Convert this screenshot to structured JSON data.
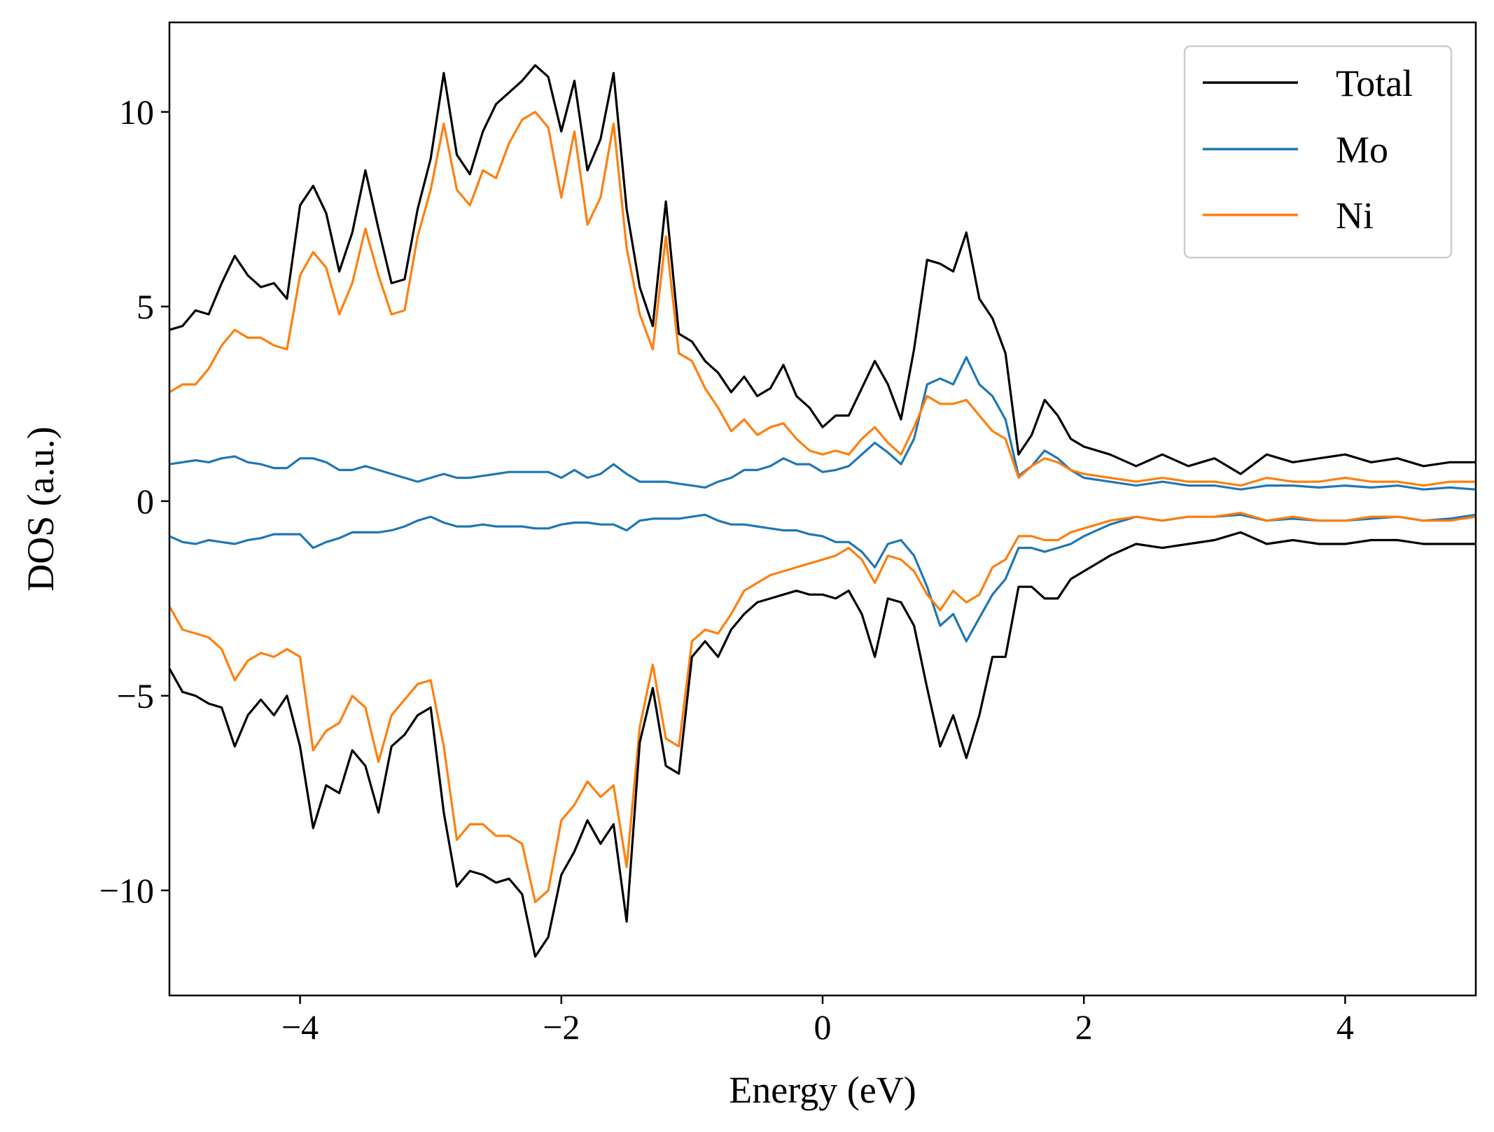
{
  "chart_data": {
    "type": "line",
    "title": "",
    "xlabel": "Energy (eV)",
    "ylabel": "DOS (a.u.)",
    "xlim": [
      -5,
      5
    ],
    "ylim": [
      -12.7,
      12.3
    ],
    "xticks": [
      -4,
      -2,
      0,
      2,
      4
    ],
    "xtick_labels": [
      "−4",
      "−2",
      "0",
      "2",
      "4"
    ],
    "yticks": [
      -10,
      -5,
      0,
      5,
      10
    ],
    "ytick_labels": [
      "−10",
      "−5",
      "0",
      "5",
      "10"
    ],
    "grid": false,
    "legend_position": "top-right",
    "legend": [
      "Total",
      "Mo",
      "Ni"
    ],
    "colors": {
      "Total": "#000000",
      "Mo": "#1f77b4",
      "Ni": "#ff7f0e"
    },
    "x": [
      -5.0,
      -4.9,
      -4.8,
      -4.7,
      -4.6,
      -4.5,
      -4.4,
      -4.3,
      -4.2,
      -4.1,
      -4.0,
      -3.9,
      -3.8,
      -3.7,
      -3.6,
      -3.5,
      -3.4,
      -3.3,
      -3.2,
      -3.1,
      -3.0,
      -2.9,
      -2.8,
      -2.7,
      -2.6,
      -2.5,
      -2.4,
      -2.3,
      -2.2,
      -2.1,
      -2.0,
      -1.9,
      -1.8,
      -1.7,
      -1.6,
      -1.5,
      -1.4,
      -1.3,
      -1.2,
      -1.1,
      -1.0,
      -0.9,
      -0.8,
      -0.7,
      -0.6,
      -0.5,
      -0.4,
      -0.3,
      -0.2,
      -0.1,
      0.0,
      0.1,
      0.2,
      0.3,
      0.4,
      0.5,
      0.6,
      0.7,
      0.8,
      0.9,
      1.0,
      1.1,
      1.2,
      1.3,
      1.4,
      1.5,
      1.6,
      1.7,
      1.8,
      1.9,
      2.0,
      2.2,
      2.4,
      2.6,
      2.8,
      3.0,
      3.2,
      3.4,
      3.6,
      3.8,
      4.0,
      4.2,
      4.4,
      4.6,
      4.8,
      5.0
    ],
    "series": [
      {
        "name": "Total",
        "spin_up": [
          4.4,
          4.5,
          4.9,
          4.8,
          5.6,
          6.3,
          5.8,
          5.5,
          5.6,
          5.2,
          7.6,
          8.1,
          7.4,
          5.9,
          6.9,
          8.5,
          7.0,
          5.6,
          5.7,
          7.5,
          8.8,
          11.0,
          8.9,
          8.4,
          9.5,
          10.2,
          10.5,
          10.8,
          11.2,
          10.9,
          9.5,
          10.8,
          8.5,
          9.3,
          11.0,
          7.5,
          5.5,
          4.5,
          7.7,
          4.3,
          4.1,
          3.6,
          3.3,
          2.8,
          3.2,
          2.7,
          2.9,
          3.5,
          2.7,
          2.4,
          1.9,
          2.2,
          2.2,
          2.9,
          3.6,
          3.0,
          2.1,
          3.9,
          6.2,
          6.1,
          5.9,
          6.9,
          5.2,
          4.7,
          3.8,
          1.2,
          1.7,
          2.6,
          2.2,
          1.6,
          1.4,
          1.2,
          0.9,
          1.2,
          0.9,
          1.1,
          0.7,
          1.2,
          1.0,
          1.1,
          1.2,
          1.0,
          1.1,
          0.9,
          1.0,
          1.0
        ],
        "spin_down": [
          -4.3,
          -4.9,
          -5.0,
          -5.2,
          -5.3,
          -6.3,
          -5.5,
          -5.1,
          -5.5,
          -5.0,
          -6.3,
          -8.4,
          -7.3,
          -7.5,
          -6.4,
          -6.8,
          -8.0,
          -6.3,
          -6.0,
          -5.5,
          -5.3,
          -8.0,
          -9.9,
          -9.5,
          -9.6,
          -9.8,
          -9.7,
          -10.1,
          -11.7,
          -11.2,
          -9.6,
          -9.0,
          -8.2,
          -8.8,
          -8.3,
          -10.8,
          -6.2,
          -4.8,
          -6.8,
          -7.0,
          -4.0,
          -3.6,
          -4.0,
          -3.3,
          -2.9,
          -2.6,
          -2.5,
          -2.4,
          -2.3,
          -2.4,
          -2.4,
          -2.5,
          -2.3,
          -2.9,
          -4.0,
          -2.5,
          -2.6,
          -3.2,
          -4.8,
          -6.3,
          -5.5,
          -6.6,
          -5.5,
          -4.0,
          -4.0,
          -2.2,
          -2.2,
          -2.5,
          -2.5,
          -2.0,
          -1.8,
          -1.4,
          -1.1,
          -1.2,
          -1.1,
          -1.0,
          -0.8,
          -1.1,
          -1.0,
          -1.1,
          -1.1,
          -1.0,
          -1.0,
          -1.1,
          -1.1,
          -1.1
        ]
      },
      {
        "name": "Mo",
        "spin_up": [
          0.95,
          1.0,
          1.05,
          1.0,
          1.1,
          1.15,
          1.0,
          0.95,
          0.85,
          0.85,
          1.1,
          1.1,
          1.0,
          0.8,
          0.8,
          0.9,
          0.8,
          0.7,
          0.6,
          0.5,
          0.6,
          0.7,
          0.6,
          0.6,
          0.65,
          0.7,
          0.75,
          0.75,
          0.75,
          0.75,
          0.6,
          0.8,
          0.6,
          0.7,
          0.95,
          0.7,
          0.5,
          0.5,
          0.5,
          0.45,
          0.4,
          0.35,
          0.5,
          0.6,
          0.8,
          0.8,
          0.9,
          1.1,
          0.95,
          0.95,
          0.75,
          0.8,
          0.9,
          1.2,
          1.5,
          1.25,
          0.95,
          1.6,
          3.0,
          3.15,
          3.0,
          3.7,
          3.0,
          2.7,
          2.1,
          0.65,
          0.9,
          1.3,
          1.1,
          0.8,
          0.6,
          0.5,
          0.4,
          0.5,
          0.4,
          0.4,
          0.3,
          0.4,
          0.4,
          0.35,
          0.4,
          0.35,
          0.4,
          0.3,
          0.35,
          0.3
        ]
      },
      {
        "name": "Ni",
        "spin_up": [
          2.8,
          3.0,
          3.0,
          3.4,
          4.0,
          4.4,
          4.2,
          4.2,
          4.0,
          3.9,
          5.8,
          6.4,
          6.0,
          4.8,
          5.6,
          7.0,
          5.8,
          4.8,
          4.9,
          6.8,
          8.0,
          9.7,
          8.0,
          7.6,
          8.5,
          8.3,
          9.2,
          9.8,
          10.0,
          9.6,
          7.8,
          9.5,
          7.1,
          7.8,
          9.7,
          6.5,
          4.8,
          3.9,
          6.8,
          3.8,
          3.6,
          2.9,
          2.4,
          1.8,
          2.1,
          1.7,
          1.9,
          2.0,
          1.6,
          1.3,
          1.2,
          1.3,
          1.2,
          1.6,
          1.9,
          1.5,
          1.2,
          1.9,
          2.7,
          2.5,
          2.5,
          2.6,
          2.2,
          1.8,
          1.6,
          0.6,
          0.9,
          1.1,
          1.0,
          0.8,
          0.7,
          0.6,
          0.5,
          0.6,
          0.5,
          0.5,
          0.4,
          0.6,
          0.5,
          0.5,
          0.6,
          0.5,
          0.5,
          0.4,
          0.5,
          0.5
        ],
        "spin_down": [
          -2.7,
          -3.3,
          -3.4,
          -3.5,
          -3.8,
          -4.6,
          -4.1,
          -3.9,
          -4.0,
          -3.8,
          -4.0,
          -6.4,
          -5.9,
          -5.7,
          -5.0,
          -5.3,
          -6.7,
          -5.5,
          -5.1,
          -4.7,
          -4.6,
          -6.3,
          -8.7,
          -8.3,
          -8.3,
          -8.6,
          -8.6,
          -8.8,
          -10.3,
          -10.0,
          -8.2,
          -7.8,
          -7.2,
          -7.6,
          -7.3,
          -9.4,
          -5.8,
          -4.2,
          -6.1,
          -6.3,
          -3.6,
          -3.3,
          -3.4,
          -2.9,
          -2.3,
          -2.1,
          -1.9,
          -1.8,
          -1.7,
          -1.6,
          -1.5,
          -1.4,
          -1.2,
          -1.5,
          -2.1,
          -1.4,
          -1.5,
          -1.8,
          -2.4,
          -2.8,
          -2.3,
          -2.6,
          -2.4,
          -1.7,
          -1.5,
          -0.9,
          -0.9,
          -1.0,
          -1.0,
          -0.8,
          -0.7,
          -0.5,
          -0.4,
          -0.5,
          -0.4,
          -0.4,
          -0.3,
          -0.5,
          -0.4,
          -0.5,
          -0.5,
          -0.4,
          -0.4,
          -0.5,
          -0.5,
          -0.4
        ]
      },
      {
        "name": "Mo",
        "role": "spin_down",
        "spin_down": [
          -0.9,
          -1.05,
          -1.1,
          -1.0,
          -1.05,
          -1.1,
          -1.0,
          -0.95,
          -0.85,
          -0.85,
          -0.85,
          -1.2,
          -1.05,
          -0.95,
          -0.8,
          -0.8,
          -0.8,
          -0.75,
          -0.65,
          -0.5,
          -0.4,
          -0.55,
          -0.65,
          -0.65,
          -0.6,
          -0.65,
          -0.65,
          -0.65,
          -0.7,
          -0.7,
          -0.6,
          -0.55,
          -0.55,
          -0.6,
          -0.6,
          -0.75,
          -0.5,
          -0.45,
          -0.45,
          -0.45,
          -0.4,
          -0.35,
          -0.5,
          -0.6,
          -0.6,
          -0.65,
          -0.7,
          -0.75,
          -0.75,
          -0.85,
          -0.9,
          -1.05,
          -1.05,
          -1.3,
          -1.7,
          -1.1,
          -1.0,
          -1.4,
          -2.2,
          -3.2,
          -2.9,
          -3.6,
          -3.0,
          -2.4,
          -2.0,
          -1.2,
          -1.2,
          -1.3,
          -1.2,
          -1.1,
          -0.9,
          -0.6,
          -0.4,
          -0.5,
          -0.4,
          -0.4,
          -0.35,
          -0.5,
          -0.45,
          -0.5,
          -0.5,
          -0.45,
          -0.4,
          -0.5,
          -0.45,
          -0.35
        ]
      }
    ]
  }
}
